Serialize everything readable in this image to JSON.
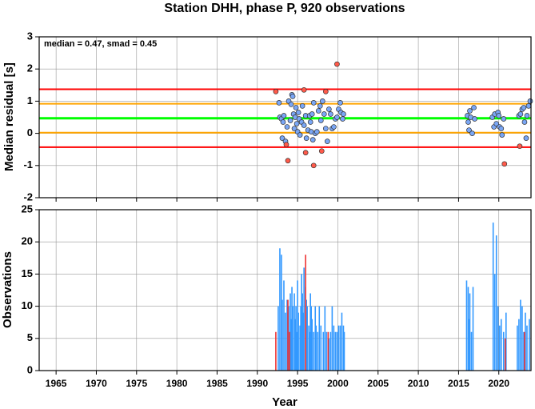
{
  "chart_data": [
    {
      "type": "scatter",
      "title": "Station DHH, phase P, 920 observations",
      "ylabel": "Median residual [s]",
      "annotation": "median = 0.47, smad = 0.45",
      "xlim": [
        1962.9,
        2024
      ],
      "ylim": [
        -2,
        3
      ],
      "yticks": [
        -2,
        -1,
        0,
        1,
        2,
        3
      ],
      "xticks": [
        1965,
        1970,
        1975,
        1980,
        1985,
        1990,
        1995,
        2000,
        2005,
        2010,
        2015,
        2020
      ],
      "grid": true,
      "hlines": [
        {
          "value": 1.37,
          "color": "#ff0000"
        },
        {
          "value": -0.43,
          "color": "#ff0000"
        },
        {
          "value": 0.92,
          "color": "#ffa500"
        },
        {
          "value": 0.02,
          "color": "#ffa500"
        },
        {
          "value": 0.47,
          "color": "#00ff00"
        }
      ],
      "series": [
        {
          "color": "#7aa6f5",
          "x": [
            1992.7,
            1992.8,
            1993.0,
            1993.2,
            1993.3,
            1993.1,
            1993.5,
            1993.7,
            1993.9,
            1994.1,
            1994.2,
            1994.3,
            1994.4,
            1994.5,
            1994.6,
            1994.7,
            1994.8,
            1994.9,
            1995.0,
            1995.1,
            1995.2,
            1995.3,
            1995.5,
            1995.6,
            1995.8,
            1996.0,
            1996.1,
            1996.3,
            1996.5,
            1996.6,
            1996.7,
            1996.8,
            1996.9,
            1997.0,
            1997.2,
            1997.4,
            1997.6,
            1997.8,
            1997.9,
            1998.1,
            1998.3,
            1998.5,
            1998.7,
            1998.9,
            1999.1,
            1999.3,
            1999.5,
            1999.7,
            1999.9,
            2000.1,
            2000.3,
            2000.4,
            2000.6,
            2000.7,
            2016.1,
            2016.2,
            2016.3,
            2016.4,
            2016.5,
            2016.7,
            2016.9,
            2017.0,
            2019.2,
            2019.4,
            2019.5,
            2019.7,
            2019.9,
            2020.0,
            2020.1,
            2020.3,
            2020.4,
            2020.6,
            2022.5,
            2022.7,
            2022.9,
            2023.1,
            2023.2,
            2023.4,
            2023.5,
            2023.7,
            2023.9
          ],
          "values": [
            0.95,
            0.5,
            0.45,
            0.35,
            0.55,
            -0.15,
            -0.25,
            0.2,
            1.0,
            0.4,
            0.9,
            1.2,
            1.15,
            0.6,
            0.15,
            0.5,
            0.8,
            0.3,
            0.05,
            0.65,
            0.45,
            -0.05,
            0.35,
            0.85,
            0.25,
            0.55,
            -0.15,
            0.1,
            0.55,
            0.35,
            0.05,
            0.6,
            -0.2,
            0.95,
            0.0,
            0.05,
            0.7,
            0.85,
            0.4,
            1.0,
            0.6,
            0.15,
            -0.25,
            0.75,
            0.6,
            0.15,
            0.2,
            0.45,
            0.5,
            0.75,
            0.95,
            0.65,
            0.45,
            0.6,
            0.55,
            0.35,
            0.1,
            0.7,
            0.5,
            0.0,
            0.8,
            0.45,
            0.5,
            0.2,
            0.6,
            0.3,
            0.65,
            0.55,
            0.2,
            0.15,
            -0.05,
            0.45,
            0.55,
            0.6,
            0.75,
            0.8,
            0.35,
            -0.15,
            0.55,
            0.85,
            1.0
          ]
        },
        {
          "color": "#ff5a4a",
          "x": [
            1992.3,
            1993.6,
            1993.8,
            1995.8,
            1996.0,
            1997.0,
            1998.0,
            1998.5,
            1999.9,
            2020.7,
            2022.6
          ],
          "values": [
            1.3,
            -0.35,
            -0.85,
            1.35,
            -0.6,
            -1.0,
            -0.55,
            1.3,
            2.15,
            -0.95,
            -0.4
          ]
        }
      ]
    },
    {
      "type": "bar",
      "ylabel": "Observations",
      "xlabel": "Year",
      "xlim": [
        1962.9,
        2024
      ],
      "ylim": [
        0,
        25
      ],
      "yticks": [
        0,
        5,
        10,
        15,
        20,
        25
      ],
      "xticks": [
        1965,
        1970,
        1975,
        1980,
        1985,
        1990,
        1995,
        2000,
        2005,
        2010,
        2015,
        2020
      ],
      "grid": true,
      "series": [
        {
          "color": "#3399ff",
          "x": [
            1992.6,
            1992.8,
            1993.0,
            1993.1,
            1993.3,
            1993.5,
            1993.7,
            1993.9,
            1994.1,
            1994.2,
            1994.3,
            1994.4,
            1994.6,
            1994.7,
            1994.8,
            1994.9,
            1995.0,
            1995.1,
            1995.3,
            1995.4,
            1995.5,
            1995.6,
            1995.7,
            1995.8,
            1996.0,
            1996.1,
            1996.2,
            1996.4,
            1996.5,
            1996.6,
            1996.7,
            1996.8,
            1997.0,
            1997.2,
            1997.3,
            1997.5,
            1997.7,
            1997.9,
            1998.2,
            1998.4,
            1998.6,
            1998.9,
            1999.1,
            1999.3,
            1999.5,
            1999.7,
            1999.9,
            2000.1,
            2000.3,
            2000.5,
            2000.7,
            2000.8,
            2016.0,
            2016.2,
            2016.3,
            2016.4,
            2016.6,
            2016.8,
            2019.3,
            2019.5,
            2019.7,
            2019.9,
            2020.1,
            2020.3,
            2020.6,
            2020.9,
            2022.3,
            2022.5,
            2022.7,
            2022.9,
            2023.1,
            2023.3,
            2023.5,
            2023.8
          ],
          "values": [
            10,
            19,
            18,
            11,
            14,
            9,
            11,
            10,
            12,
            8,
            13,
            10,
            12,
            8,
            10,
            6,
            14,
            9,
            7,
            10,
            15,
            12,
            9,
            16,
            13,
            11,
            10,
            7,
            6,
            12,
            10,
            8,
            6,
            10,
            7,
            6,
            10,
            7,
            6,
            10,
            6,
            5,
            6,
            10,
            7,
            6,
            6,
            7,
            7,
            9,
            7,
            6,
            14,
            13,
            8,
            12,
            6,
            13,
            23,
            15,
            21,
            10,
            7,
            8,
            6,
            9,
            7,
            8,
            11,
            10,
            6,
            9,
            7,
            8
          ]
        },
        {
          "color": "#ee3333",
          "x": [
            1992.3,
            1993.8,
            1994.0,
            1996.0,
            1998.8,
            2020.8,
            2023.2
          ],
          "values": [
            6,
            11,
            6,
            18,
            6,
            5,
            6
          ]
        }
      ]
    }
  ]
}
